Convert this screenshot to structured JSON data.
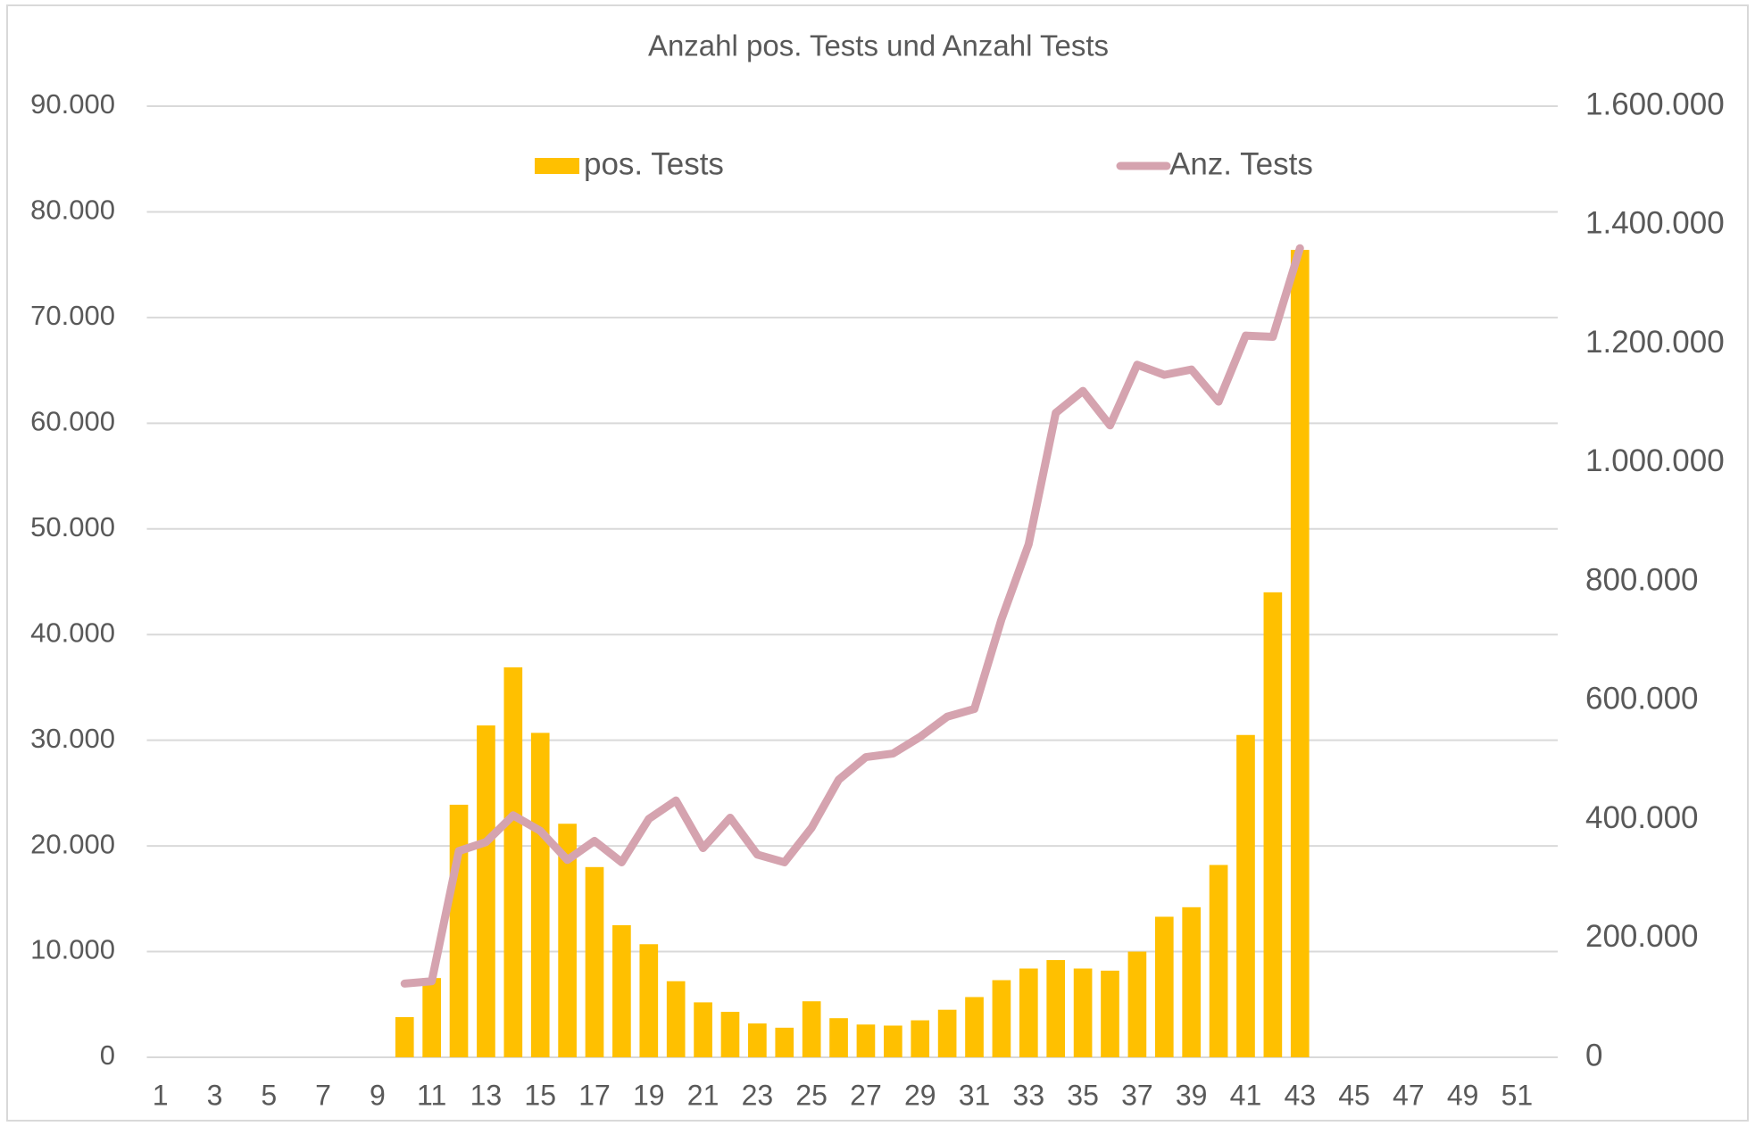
{
  "chart_data": {
    "type": "bar",
    "title": "Anzahl pos. Tests und Anzahl Tests",
    "categories": [
      "1",
      null,
      "3",
      null,
      "5",
      null,
      "7",
      null,
      "9",
      null,
      "11",
      null,
      "13",
      null,
      "15",
      null,
      "17",
      null,
      "19",
      null,
      "21",
      null,
      "23",
      null,
      "25",
      null,
      "27",
      null,
      "29",
      null,
      "31",
      null,
      "33",
      null,
      "35",
      null,
      "37",
      null,
      "39",
      null,
      "41",
      null,
      "43",
      null,
      "45",
      null,
      "47",
      null,
      "49",
      null,
      "51",
      null
    ],
    "series": [
      {
        "name": "pos. Tests",
        "type": "bar",
        "color": "#ffc000",
        "values": [
          null,
          null,
          null,
          null,
          null,
          null,
          null,
          null,
          null,
          3800,
          7500,
          23900,
          31400,
          36900,
          30700,
          22100,
          18000,
          12500,
          10700,
          7200,
          5200,
          4300,
          3200,
          2800,
          5300,
          3700,
          3100,
          3000,
          3500,
          4500,
          5700,
          7300,
          8400,
          9200,
          8400,
          8200,
          10000,
          13300,
          14200,
          18200,
          30500,
          44000,
          76400,
          null,
          null,
          null,
          null,
          null,
          null,
          null,
          null,
          null
        ]
      },
      {
        "name": "Anz. Tests",
        "type": "line",
        "axis": "y2",
        "color": "#d5a3af",
        "values": [
          null,
          null,
          null,
          null,
          null,
          null,
          null,
          null,
          null,
          124000,
          128000,
          347000,
          362000,
          407000,
          381000,
          332000,
          364000,
          328000,
          401000,
          432000,
          352000,
          403000,
          341000,
          328000,
          386000,
          467000,
          505000,
          511000,
          539000,
          573000,
          586000,
          737000,
          863000,
          1084000,
          1121000,
          1063000,
          1165000,
          1148000,
          1157000,
          1103000,
          1214000,
          1212000,
          1361000,
          null,
          null,
          null,
          null,
          null,
          null,
          null,
          null,
          null
        ]
      }
    ],
    "ylim": [
      0,
      90000
    ],
    "yticks": [
      0,
      {
        "value": 10000,
        "label": "10.000"
      },
      {
        "value": 20000,
        "label": "20.000"
      },
      {
        "value": 30000,
        "label": "30.000"
      },
      {
        "value": 40000,
        "label": "40.000"
      },
      {
        "value": 50000,
        "label": "50.000"
      },
      {
        "value": 60000,
        "label": "60.000"
      },
      {
        "value": 70000,
        "label": "70.000"
      },
      {
        "value": 80000,
        "label": "80.000"
      },
      {
        "value": 90000,
        "label": "90.000"
      }
    ],
    "y2lim": [
      0,
      1600000
    ],
    "y2ticks": [
      0,
      {
        "value": 200000,
        "label": "200.000"
      },
      {
        "value": 400000,
        "label": "400.000"
      },
      {
        "value": 600000,
        "label": "600.000"
      },
      {
        "value": 800000,
        "label": "800.000"
      },
      {
        "value": 1000000,
        "label": "1.000.000"
      },
      {
        "value": 1200000,
        "label": "1.200.000"
      },
      {
        "value": 1400000,
        "label": "1.400.000"
      },
      {
        "value": 1600000,
        "label": "1.600.000"
      }
    ],
    "grid": true,
    "legend": "top"
  }
}
